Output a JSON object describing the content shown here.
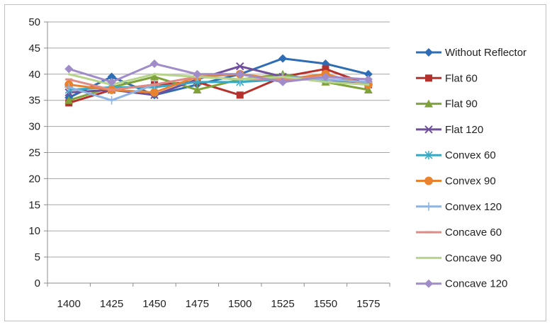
{
  "chart_data": {
    "type": "line",
    "title": "",
    "xlabel": "",
    "ylabel": "",
    "ylim": [
      0,
      50
    ],
    "ytick_step": 5,
    "yticks": [
      "0",
      "5",
      "10",
      "15",
      "20",
      "25",
      "30",
      "35",
      "40",
      "45",
      "50"
    ],
    "grid": "horizontal",
    "legend_position": "right",
    "categories": [
      "1400",
      "1425",
      "1450",
      "1475",
      "1500",
      "1525",
      "1550",
      "1575"
    ],
    "series": [
      {
        "name": "Without  Reflector",
        "color": "#2e6db4",
        "marker": "diamond",
        "values": [
          35.5,
          39.5,
          36,
          38,
          40,
          43,
          42,
          40
        ]
      },
      {
        "name": "Flat 60",
        "color": "#b7312c",
        "marker": "square",
        "values": [
          34.5,
          37,
          38,
          38.5,
          36,
          39.5,
          41,
          38
        ]
      },
      {
        "name": "Flat 90",
        "color": "#7fa33a",
        "marker": "triangle",
        "values": [
          35,
          37.5,
          39.5,
          37,
          39,
          40,
          38.5,
          37
        ]
      },
      {
        "name": "Flat 120",
        "color": "#6f4e9c",
        "marker": "x",
        "values": [
          36.5,
          37,
          36,
          39,
          41.5,
          39.5,
          39,
          38
        ]
      },
      {
        "name": "Convex 60",
        "color": "#38a9c5",
        "marker": "asterisk",
        "values": [
          37,
          37.5,
          37.5,
          38.5,
          38.5,
          39,
          39,
          38.5
        ]
      },
      {
        "name": "Convex 90",
        "color": "#e9822e",
        "marker": "circle",
        "values": [
          38,
          37,
          36.5,
          39.5,
          40,
          39,
          40,
          38
        ]
      },
      {
        "name": "Convex 120",
        "color": "#8fb4e3",
        "marker": "plus",
        "values": [
          37.5,
          35,
          38,
          39.5,
          39,
          39.5,
          39,
          38.5
        ]
      },
      {
        "name": "Concave 60",
        "color": "#e08a85",
        "marker": "dash",
        "values": [
          39,
          37,
          38,
          39.5,
          39,
          39,
          39.5,
          39
        ]
      },
      {
        "name": "Concave 90",
        "color": "#b6d48a",
        "marker": "none",
        "values": [
          40,
          38,
          40,
          39.5,
          39,
          39.5,
          38.5,
          38
        ]
      },
      {
        "name": "Concave 120",
        "color": "#a08cc8",
        "marker": "diamond",
        "values": [
          41,
          38.5,
          42,
          40,
          40,
          38.5,
          39.5,
          39
        ]
      }
    ]
  }
}
